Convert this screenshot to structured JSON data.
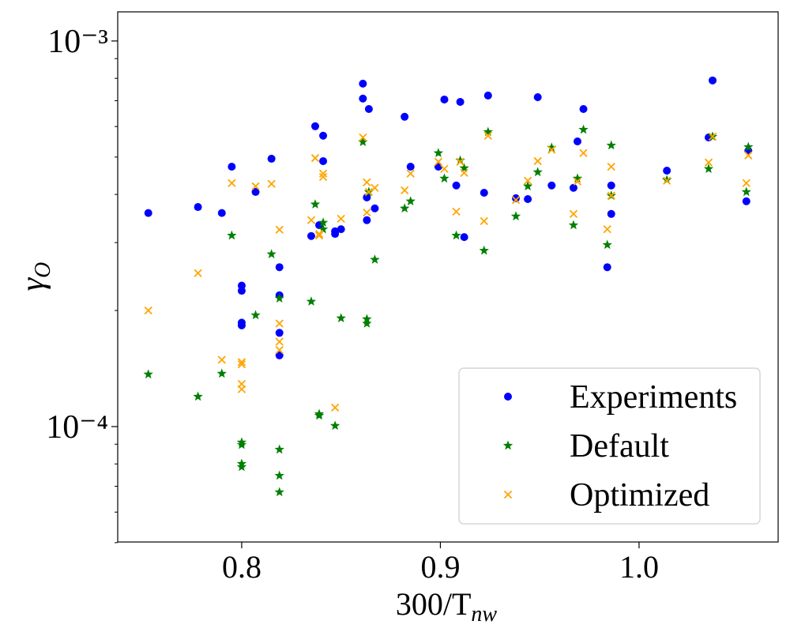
{
  "chart_data": {
    "type": "scatter",
    "xlabel": {
      "base": "300/T",
      "sub": "nw"
    },
    "ylabel": {
      "base": "γ",
      "sub": "O"
    },
    "log_y": true,
    "grid": false,
    "legend_loc": "lower right",
    "xlim": [
      0.7376,
      1.07
    ],
    "ylim": [
      5.02e-05,
      0.00119
    ],
    "xticks": [
      0.8,
      0.9,
      {
        "value": 1,
        "label": "1.0"
      }
    ],
    "yticks": [
      {
        "value": 0.0001,
        "label": "10⁻⁴"
      },
      {
        "value": 0.001,
        "label": "10⁻³"
      }
    ],
    "yminorticks": [
      5e-05,
      6e-05,
      7e-05,
      8e-05,
      9e-05,
      0.0002,
      0.0003,
      0.0004,
      0.0005,
      0.0006,
      0.0007,
      0.0008,
      0.0009
    ],
    "series": [
      {
        "name": "Experiments",
        "color": "#0000ff",
        "marker": "circle",
        "x": [
          0.753,
          0.778,
          0.79,
          0.795,
          0.8,
          0.8,
          0.8,
          0.8,
          0.807,
          0.815,
          0.819,
          0.819,
          0.819,
          0.819,
          0.835,
          0.837,
          0.839,
          0.841,
          0.841,
          0.847,
          0.847,
          0.85,
          0.861,
          0.861,
          0.863,
          0.863,
          0.864,
          0.867,
          0.882,
          0.885,
          0.899,
          0.902,
          0.908,
          0.91,
          0.912,
          0.922,
          0.924,
          0.938,
          0.944,
          0.949,
          0.956,
          0.967,
          0.969,
          0.972,
          0.984,
          0.986,
          0.986,
          1.014,
          1.035,
          1.037,
          1.054,
          1.055
        ],
        "values": [
          0.000358,
          0.000371,
          0.000358,
          0.000472,
          0.000232,
          0.000225,
          0.000186,
          0.000183,
          0.000406,
          0.000495,
          0.000259,
          0.000219,
          0.000175,
          0.000153,
          0.000312,
          0.000601,
          0.000333,
          0.000568,
          0.000488,
          0.000316,
          0.000321,
          0.000325,
          0.000775,
          0.000709,
          0.000393,
          0.000343,
          0.000666,
          0.000368,
          0.000636,
          0.000472,
          0.000472,
          0.000705,
          0.000422,
          0.000695,
          0.00031,
          0.000404,
          0.000722,
          0.000391,
          0.000389,
          0.000715,
          0.000422,
          0.000416,
          0.000549,
          0.000666,
          0.000259,
          0.000356,
          0.000422,
          0.000461,
          0.000562,
          0.00079,
          0.000384,
          0.000519
        ]
      },
      {
        "name": "Default",
        "color": "#008000",
        "marker": "star",
        "x": [
          0.753,
          0.778,
          0.79,
          0.795,
          0.8,
          0.8,
          0.8,
          0.8,
          0.807,
          0.815,
          0.819,
          0.819,
          0.819,
          0.819,
          0.835,
          0.837,
          0.839,
          0.839,
          0.841,
          0.841,
          0.847,
          0.85,
          0.861,
          0.863,
          0.863,
          0.864,
          0.867,
          0.882,
          0.885,
          0.899,
          0.902,
          0.908,
          0.91,
          0.912,
          0.922,
          0.924,
          0.938,
          0.944,
          0.949,
          0.956,
          0.967,
          0.969,
          0.972,
          0.984,
          0.986,
          0.986,
          1.014,
          1.035,
          1.037,
          1.054,
          1.055
        ],
        "values": [
          0.0001366,
          0.0001196,
          0.0001372,
          0.000313,
          9.1e-05,
          8.97e-05,
          8.01e-05,
          7.86e-05,
          0.0001945,
          0.00028,
          0.000215,
          8.72e-05,
          7.46e-05,
          6.76e-05,
          0.000211,
          0.000377,
          0.0001078,
          0.0001068,
          0.000338,
          0.000325,
          0.0001005,
          0.000191,
          0.000547,
          0.00019,
          0.000185,
          0.000406,
          0.000271,
          0.000368,
          0.000384,
          0.000512,
          0.00044,
          0.000313,
          0.00049,
          0.000468,
          0.000286,
          0.000581,
          0.000351,
          0.00042,
          0.000457,
          0.000529,
          0.000333,
          0.00044,
          0.000589,
          0.000296,
          0.000397,
          0.000536,
          0.000436,
          0.000466,
          0.000565,
          0.000406,
          0.000531
        ]
      },
      {
        "name": "Optimized",
        "color": "#ffa500",
        "marker": "x",
        "x": [
          0.753,
          0.778,
          0.79,
          0.795,
          0.8,
          0.8,
          0.8,
          0.8,
          0.807,
          0.815,
          0.819,
          0.819,
          0.819,
          0.819,
          0.835,
          0.837,
          0.839,
          0.839,
          0.841,
          0.841,
          0.847,
          0.85,
          0.861,
          0.863,
          0.863,
          0.864,
          0.867,
          0.882,
          0.885,
          0.899,
          0.902,
          0.908,
          0.91,
          0.912,
          0.922,
          0.924,
          0.938,
          0.944,
          0.949,
          0.956,
          0.967,
          0.969,
          0.972,
          0.984,
          0.986,
          0.986,
          1.014,
          1.035,
          1.037,
          1.054,
          1.055
        ],
        "values": [
          0.0002,
          0.00025,
          0.000149,
          0.000428,
          0.000147,
          0.000145,
          0.000129,
          0.000125,
          0.00042,
          0.000426,
          0.000324,
          0.000185,
          0.000166,
          0.000158,
          0.000343,
          0.000497,
          0.000313,
          0.000316,
          0.000453,
          0.000444,
          0.000112,
          0.000346,
          0.000562,
          0.000359,
          0.00043,
          0.000406,
          0.000416,
          0.00041,
          0.000453,
          0.000486,
          0.000466,
          0.000361,
          0.000486,
          0.000455,
          0.000341,
          0.000568,
          0.000387,
          0.000434,
          0.000488,
          0.000522,
          0.000356,
          0.000432,
          0.000512,
          0.000325,
          0.000397,
          0.000472,
          0.000434,
          0.000484,
          0.000565,
          0.000428,
          0.000505
        ]
      }
    ]
  }
}
